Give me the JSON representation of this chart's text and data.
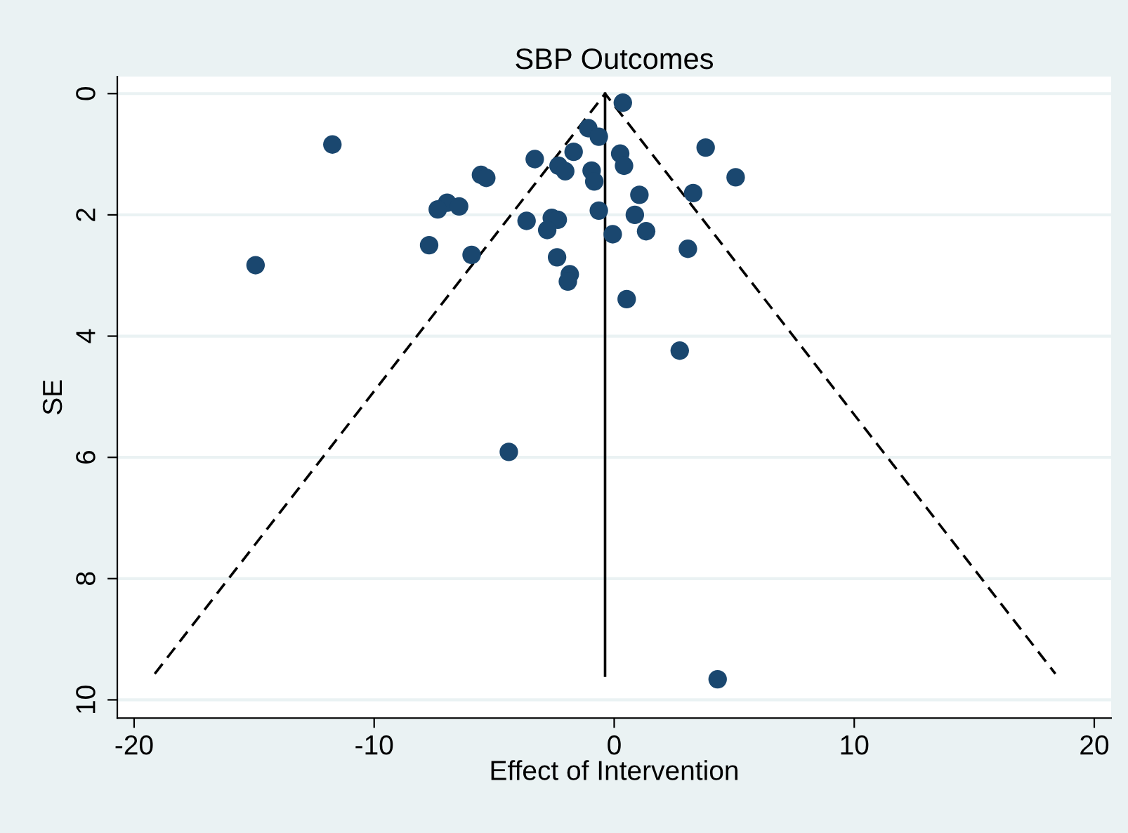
{
  "chart_data": {
    "type": "scatter",
    "title": "SBP Outcomes",
    "xlabel": "Effect of Intervention",
    "ylabel": "SE",
    "xlim": [
      -20.7,
      20.7
    ],
    "ylim": [
      10.3,
      -0.28
    ],
    "xticks": [
      -20,
      -10,
      0,
      10,
      20
    ],
    "yticks": [
      0,
      2,
      4,
      6,
      8,
      10
    ],
    "grid": "y",
    "legend": false,
    "series": [
      {
        "color": "#1a476f",
        "marker": "circle",
        "x": [
          0.36,
          -11.74,
          -1.08,
          -0.64,
          3.81,
          -3.31,
          -1.69,
          0.25,
          0.41,
          -2.32,
          -2.04,
          -5.55,
          -5.33,
          5.06,
          -0.94,
          -0.83,
          1.05,
          3.29,
          -6.96,
          -7.35,
          -6.46,
          -0.64,
          -3.65,
          -2.6,
          -2.35,
          -2.79,
          0.86,
          -0.06,
          1.33,
          -7.71,
          3.07,
          -5.94,
          -2.38,
          -14.94,
          -1.85,
          -1.93,
          0.52,
          2.73,
          -4.39,
          4.31
        ],
        "values": [
          0.15,
          0.84,
          0.57,
          0.71,
          0.89,
          1.08,
          0.96,
          0.99,
          1.19,
          1.19,
          1.28,
          1.34,
          1.39,
          1.38,
          1.27,
          1.45,
          1.67,
          1.64,
          1.8,
          1.91,
          1.86,
          1.93,
          2.1,
          2.05,
          2.08,
          2.25,
          2.0,
          2.32,
          2.27,
          2.5,
          2.56,
          2.66,
          2.7,
          2.83,
          2.98,
          3.1,
          3.39,
          4.24,
          5.91,
          9.66
        ]
      },
      {
        "type": "line",
        "color": "#000000",
        "line_style": "dashed",
        "marker": "none",
        "x": [
          -19.14,
          -0.38,
          18.38
        ],
        "values": [
          9.57,
          0,
          9.57
        ]
      },
      {
        "type": "line",
        "color": "#000000",
        "line_style": "solid",
        "marker": "none",
        "x": [
          -0.38,
          -0.38
        ],
        "values": [
          0,
          9.6
        ]
      }
    ]
  }
}
